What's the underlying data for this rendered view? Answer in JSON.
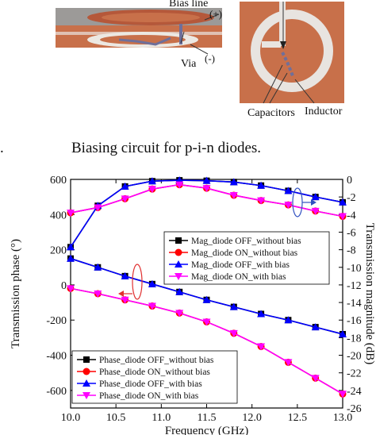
{
  "top_figure": {
    "bias_line_label": "Bias line",
    "plus_label": "(+)",
    "minus_label": "(-)",
    "via_label": "Via",
    "capacitors_label": "Capacitors",
    "inductor_label": "Inductor",
    "colors": {
      "substrate": "#c8704a",
      "ring": "#e8e4e0",
      "background_panel": "#dcdad6",
      "bias": "#6f6f9a"
    }
  },
  "caption": {
    "marker": ".",
    "text": "Biasing circuit for p-i-n diodes."
  },
  "chart_data": {
    "type": "line",
    "xlabel": "Frequency (GHz)",
    "ylabel_left": "Transmission phase (°)",
    "ylabel_right": "Transmission magnitude (dB)",
    "xlim": [
      10.0,
      13.0
    ],
    "ylim_left": [
      -700,
      600
    ],
    "ylim_right": [
      -26,
      0
    ],
    "x_ticks": [
      "10.0",
      "10.5",
      "11.0",
      "11.5",
      "12.0",
      "12.5",
      "13.0"
    ],
    "y_ticks_left": [
      "600",
      "400",
      "200",
      "0",
      "-200",
      "-400",
      "-600"
    ],
    "y_ticks_right": [
      "0",
      "-2",
      "-4",
      "-6",
      "-8",
      "-10",
      "-12",
      "-14",
      "-16",
      "-18",
      "-20",
      "-22",
      "-24",
      "-26"
    ],
    "x": [
      10.0,
      10.3,
      10.6,
      10.9,
      11.2,
      11.5,
      11.8,
      12.1,
      12.4,
      12.7,
      13.0
    ],
    "magnitude_series": [
      {
        "name": "Mag_diode OFF_without bias",
        "color": "#000000",
        "marker": "square",
        "axis": "right",
        "values": [
          -7.7,
          -3.0,
          -0.8,
          -0.2,
          -0.1,
          -0.15,
          -0.3,
          -0.7,
          -1.3,
          -2.0,
          -2.6
        ]
      },
      {
        "name": "Mag_diode ON_without bias",
        "color": "#ff0000",
        "marker": "circle",
        "axis": "right",
        "values": [
          -3.8,
          -3.2,
          -2.2,
          -1.1,
          -0.6,
          -1.0,
          -1.8,
          -2.4,
          -2.9,
          -3.6,
          -4.2
        ]
      },
      {
        "name": "Mag_diode OFF_with bias",
        "color": "#0000ff",
        "marker": "triangle-up",
        "axis": "right",
        "values": [
          -7.7,
          -3.0,
          -0.8,
          -0.2,
          -0.1,
          -0.15,
          -0.3,
          -0.7,
          -1.3,
          -2.0,
          -2.6
        ]
      },
      {
        "name": "Mag_diode ON_with bias",
        "color": "#ff00ff",
        "marker": "triangle-down",
        "axis": "right",
        "values": [
          -3.8,
          -3.2,
          -2.2,
          -1.1,
          -0.6,
          -1.0,
          -1.8,
          -2.4,
          -2.9,
          -3.6,
          -4.2
        ]
      }
    ],
    "phase_series": [
      {
        "name": "Phase_diode OFF_without bias",
        "color": "#000000",
        "marker": "square",
        "axis": "left",
        "values": [
          150,
          100,
          50,
          5,
          -40,
          -85,
          -125,
          -165,
          -200,
          -240,
          -280
        ]
      },
      {
        "name": "Phase_diode ON_without bias",
        "color": "#ff0000",
        "marker": "circle",
        "axis": "left",
        "values": [
          -20,
          -50,
          -85,
          -120,
          -160,
          -210,
          -275,
          -350,
          -440,
          -530,
          -620
        ]
      },
      {
        "name": "Phase_diode OFF_with bias",
        "color": "#0000ff",
        "marker": "triangle-up",
        "axis": "left",
        "values": [
          150,
          100,
          50,
          5,
          -40,
          -85,
          -125,
          -165,
          -200,
          -240,
          -280
        ]
      },
      {
        "name": "Phase_diode ON_with bias",
        "color": "#ff00ff",
        "marker": "triangle-down",
        "axis": "left",
        "values": [
          -20,
          -50,
          -85,
          -120,
          -160,
          -210,
          -275,
          -350,
          -440,
          -530,
          -620
        ]
      }
    ],
    "legend_mag_placement": "center-right",
    "legend_phase_placement": "bottom-left",
    "grid": false
  }
}
